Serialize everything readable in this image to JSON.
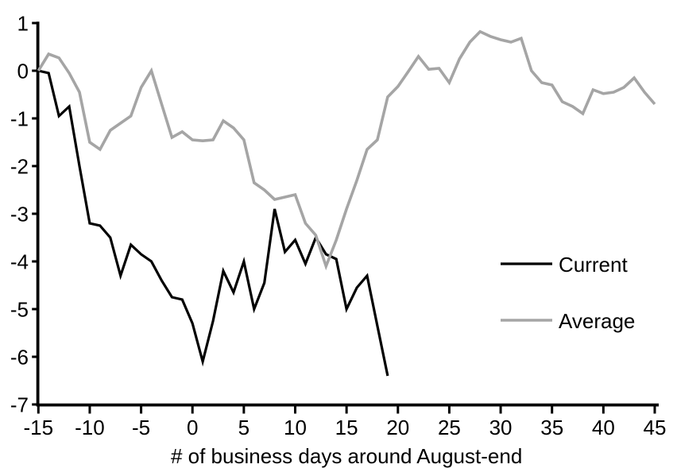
{
  "chart_data": {
    "type": "line",
    "title": "",
    "xlabel": "# of business days around August-end",
    "ylabel": "",
    "xlim": [
      -15,
      45
    ],
    "ylim": [
      -7,
      1
    ],
    "grid": false,
    "x_ticks": [
      -15,
      -10,
      -5,
      0,
      5,
      10,
      15,
      20,
      25,
      30,
      35,
      40,
      45
    ],
    "y_ticks": [
      1,
      0,
      -1,
      -2,
      -3,
      -4,
      -5,
      -6,
      -7
    ],
    "legend_position": "right-middle",
    "colors": {
      "current": "#000000",
      "average": "#a5a5a5",
      "axis": "#000000"
    },
    "series": [
      {
        "name": "Current",
        "color": "#000000",
        "x": [
          -15,
          -14,
          -13,
          -12,
          -11,
          -10,
          -9,
          -8,
          -7,
          -6,
          -5,
          -4,
          -3,
          -2,
          -1,
          0,
          1,
          2,
          3,
          4,
          5,
          6,
          7,
          8,
          9,
          10,
          11,
          12,
          13,
          14,
          15,
          16,
          17,
          18,
          19
        ],
        "values": [
          0,
          -0.05,
          -0.95,
          -0.75,
          -2.0,
          -3.2,
          -3.25,
          -3.5,
          -4.3,
          -3.65,
          -3.85,
          -4.0,
          -4.4,
          -4.75,
          -4.8,
          -5.3,
          -6.1,
          -5.25,
          -4.2,
          -4.65,
          -4.0,
          -5.0,
          -4.45,
          -2.9,
          -3.8,
          -3.55,
          -4.05,
          -3.5,
          -3.85,
          -3.95,
          -5.0,
          -4.55,
          -4.3,
          -5.35,
          -6.4
        ]
      },
      {
        "name": "Average",
        "color": "#a5a5a5",
        "x": [
          -15,
          -14,
          -13,
          -12,
          -11,
          -10,
          -9,
          -8,
          -7,
          -6,
          -5,
          -4,
          -3,
          -2,
          -1,
          0,
          1,
          2,
          3,
          4,
          5,
          6,
          7,
          8,
          9,
          10,
          11,
          12,
          13,
          14,
          15,
          16,
          17,
          18,
          19,
          20,
          21,
          22,
          23,
          24,
          25,
          26,
          27,
          28,
          29,
          30,
          31,
          32,
          33,
          34,
          35,
          36,
          37,
          38,
          39,
          40,
          41,
          42,
          43,
          44,
          45
        ],
        "values": [
          0,
          0.35,
          0.27,
          -0.05,
          -0.45,
          -1.5,
          -1.65,
          -1.25,
          -1.1,
          -0.95,
          -0.35,
          0.0,
          -0.7,
          -1.4,
          -1.28,
          -1.45,
          -1.47,
          -1.45,
          -1.05,
          -1.2,
          -1.45,
          -2.35,
          -2.5,
          -2.7,
          -2.65,
          -2.6,
          -3.2,
          -3.45,
          -4.1,
          -3.55,
          -2.9,
          -2.3,
          -1.65,
          -1.45,
          -0.55,
          -0.33,
          -0.02,
          0.3,
          0.03,
          0.05,
          -0.25,
          0.25,
          0.6,
          0.82,
          0.72,
          0.65,
          0.6,
          0.68,
          0.0,
          -0.25,
          -0.3,
          -0.65,
          -0.75,
          -0.9,
          -0.4,
          -0.48,
          -0.45,
          -0.35,
          -0.15,
          -0.45,
          -0.7
        ]
      }
    ],
    "legend": [
      {
        "label": "Current",
        "color": "#000000"
      },
      {
        "label": "Average",
        "color": "#a5a5a5"
      }
    ]
  }
}
